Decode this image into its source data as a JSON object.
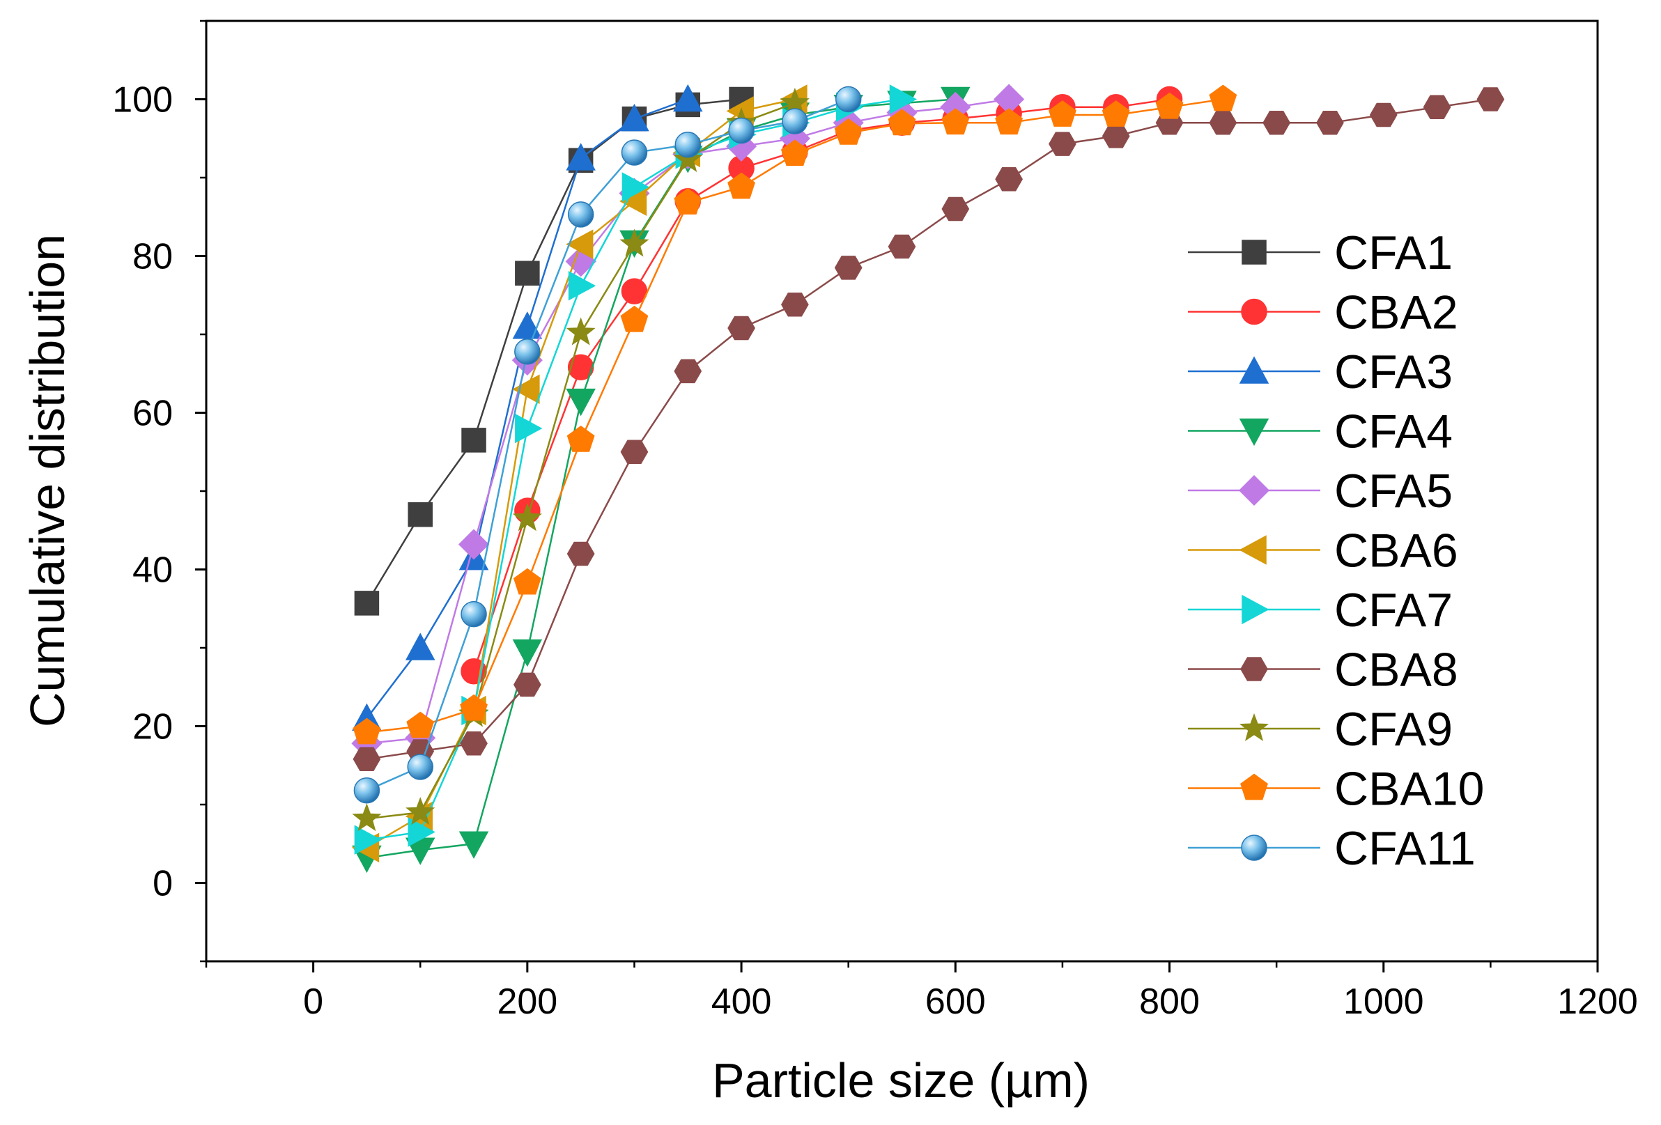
{
  "chart_data": {
    "type": "line",
    "title": "",
    "xlabel": "Particle size (µm)",
    "ylabel": "Cumulative distribution",
    "xlim": [
      -100,
      1200
    ],
    "ylim": [
      -10,
      110
    ],
    "xticks": [
      0,
      200,
      400,
      600,
      800,
      1000,
      1200
    ],
    "yticks": [
      0,
      20,
      40,
      60,
      80,
      100
    ],
    "grid": false,
    "legend_position": "right",
    "series": [
      {
        "name": "CFA1",
        "color": "#3f3f3f",
        "marker": "square",
        "x": [
          50,
          100,
          150,
          200,
          250,
          300,
          350,
          400
        ],
        "y": [
          35.7,
          47,
          56.5,
          77.8,
          92.2,
          97.5,
          99.3,
          100
        ]
      },
      {
        "name": "CBA2",
        "color": "#ff3333",
        "marker": "circle",
        "x": [
          150,
          200,
          250,
          300,
          350,
          400,
          450,
          500,
          550,
          600,
          650,
          700,
          750,
          800
        ],
        "y": [
          27,
          47.5,
          65.8,
          75.5,
          87,
          91.2,
          93.3,
          96,
          97,
          97.5,
          98.2,
          99,
          99,
          100
        ]
      },
      {
        "name": "CFA3",
        "color": "#1f6fd1",
        "marker": "triangle-up",
        "x": [
          50,
          100,
          150,
          200,
          250,
          300,
          350
        ],
        "y": [
          21,
          30,
          41.5,
          71,
          92.5,
          97.5,
          100
        ]
      },
      {
        "name": "CFA4",
        "color": "#13a660",
        "marker": "triangle-down",
        "x": [
          50,
          100,
          150,
          200,
          250,
          300,
          350,
          400,
          450,
          500,
          550,
          600
        ],
        "y": [
          3.2,
          4.2,
          5,
          29.5,
          61.5,
          81.7,
          92.5,
          96,
          98,
          99,
          99.5,
          100
        ]
      },
      {
        "name": "CFA5",
        "color": "#c07ae6",
        "marker": "diamond",
        "x": [
          50,
          100,
          150,
          200,
          250,
          300,
          350,
          400,
          450,
          500,
          550,
          600,
          650
        ],
        "y": [
          17.8,
          18.5,
          43.2,
          66.7,
          79.3,
          88,
          93,
          94,
          95,
          97,
          98.3,
          99,
          100
        ]
      },
      {
        "name": "CBA6",
        "color": "#d69a0a",
        "marker": "triangle-left",
        "x": [
          50,
          100,
          150,
          200,
          250,
          300,
          350,
          400,
          450
        ],
        "y": [
          4.5,
          8.5,
          22,
          63,
          81.5,
          87,
          93.2,
          98.5,
          100
        ]
      },
      {
        "name": "CFA7",
        "color": "#14d6d6",
        "marker": "triangle-right",
        "x": [
          50,
          100,
          150,
          200,
          250,
          300,
          350,
          400,
          450,
          500,
          550
        ],
        "y": [
          5.5,
          6.5,
          22,
          58,
          76.2,
          88.8,
          93,
          95.5,
          97,
          99,
          100
        ]
      },
      {
        "name": "CBA8",
        "color": "#8b4a4a",
        "marker": "hexagon",
        "x": [
          50,
          100,
          150,
          200,
          250,
          300,
          350,
          400,
          450,
          500,
          550,
          600,
          650,
          700,
          750,
          800,
          850,
          900,
          950,
          1000,
          1050,
          1100
        ],
        "y": [
          15.8,
          16.8,
          17.8,
          25.3,
          42,
          55,
          65.3,
          70.8,
          73.8,
          78.5,
          81.2,
          86,
          89.8,
          94.3,
          95.3,
          97,
          97,
          97,
          97,
          98,
          99,
          100
        ]
      },
      {
        "name": "CFA9",
        "color": "#8a8a14",
        "marker": "star",
        "x": [
          50,
          100,
          150,
          200,
          250,
          300,
          350,
          400,
          450
        ],
        "y": [
          8.2,
          9,
          21.5,
          46.5,
          70.2,
          81.5,
          92.3,
          97,
          99.5
        ]
      },
      {
        "name": "CBA10",
        "color": "#ff7a00",
        "marker": "pentagon",
        "x": [
          50,
          100,
          150,
          200,
          250,
          300,
          350,
          400,
          450,
          500,
          550,
          600,
          650,
          700,
          750,
          800,
          850
        ],
        "y": [
          19.2,
          20,
          22.2,
          38.3,
          56.5,
          71.8,
          86.8,
          88.8,
          93,
          95.7,
          96.9,
          97,
          97,
          98,
          98,
          99,
          100
        ]
      },
      {
        "name": "CFA11",
        "color": "#3fa0d6",
        "marker": "sphere",
        "x": [
          50,
          100,
          150,
          200,
          250,
          300,
          350,
          400,
          450,
          500
        ],
        "y": [
          11.8,
          14.8,
          34.3,
          67.8,
          85.3,
          93.2,
          94.2,
          96,
          97.2,
          100
        ]
      }
    ]
  }
}
